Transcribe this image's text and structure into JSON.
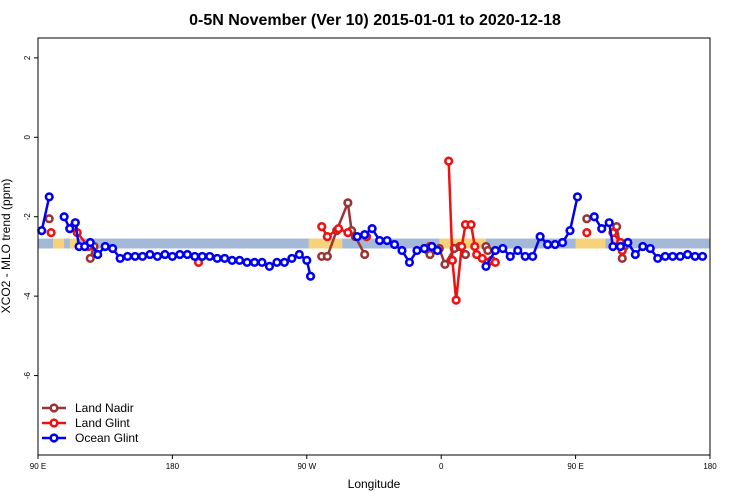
{
  "chart_data": {
    "type": "line",
    "title": "0-5N November (Ver 10)   2015-01-01 to 2020-12-18",
    "xlabel": "Longitude",
    "ylabel": "XCO2 - MLO trend (ppm)",
    "xlim": [
      90,
      450
    ],
    "ylim": [
      -8,
      2.5
    ],
    "x_ticks": [
      {
        "value": 90,
        "label": "90 E"
      },
      {
        "value": 162,
        "label": "180"
      },
      {
        "value": 234,
        "label": "90 W"
      },
      {
        "value": 306,
        "label": "0"
      },
      {
        "value": 378,
        "label": "90 E"
      },
      {
        "value": 450,
        "label": "180"
      }
    ],
    "y_ticks": [
      {
        "value": 2,
        "label": "2"
      },
      {
        "value": 0,
        "label": "0"
      },
      {
        "value": -2,
        "label": "-2"
      },
      {
        "value": -4,
        "label": "-4"
      },
      {
        "value": -6,
        "label": "-6"
      }
    ],
    "band": {
      "y_low": -2.8,
      "y_high": -2.55,
      "color": "#a4b8d8",
      "highlight_color": "#f7d27a",
      "highlight_ranges": [
        [
          98,
          104
        ],
        [
          107,
          112
        ],
        [
          235,
          253
        ],
        [
          305,
          330
        ],
        [
          378,
          394
        ],
        [
          398,
          404
        ]
      ]
    },
    "legend": {
      "position": "bottom-left"
    },
    "grid": false,
    "series": [
      {
        "name": "Land Nadir",
        "color": "#9b3434",
        "points": [
          [
            96,
            -2.05
          ],
          [
            109,
            -2.25
          ],
          [
            118,
            -3.05
          ],
          [
            120,
            -2.75
          ],
          [
            242,
            -3.0
          ],
          [
            245,
            -3.0
          ],
          [
            250,
            -2.35
          ],
          [
            256,
            -1.65
          ],
          [
            258,
            -2.35
          ],
          [
            260,
            -2.5
          ],
          [
            265,
            -2.95
          ],
          [
            299,
            -2.85
          ],
          [
            300,
            -2.95
          ],
          [
            305,
            -2.8
          ],
          [
            308,
            -3.2
          ],
          [
            313,
            -2.8
          ],
          [
            316,
            -2.75
          ],
          [
            319,
            -2.95
          ],
          [
            330,
            -2.75
          ],
          [
            331,
            -2.85
          ],
          [
            384,
            -2.05
          ],
          [
            400,
            -2.25
          ],
          [
            403,
            -3.05
          ],
          [
            404,
            -2.75
          ]
        ]
      },
      {
        "name": "Land Glint",
        "color": "#ee1111",
        "points": [
          [
            97,
            -2.4
          ],
          [
            111,
            -2.4
          ],
          [
            117,
            -2.75
          ],
          [
            176,
            -3.15
          ],
          [
            242,
            -2.25
          ],
          [
            245,
            -2.5
          ],
          [
            251,
            -2.3
          ],
          [
            256,
            -2.4
          ],
          [
            266,
            -2.5
          ],
          [
            300,
            -2.75
          ],
          [
            310,
            -0.6
          ],
          [
            312,
            -3.1
          ],
          [
            314,
            -4.1
          ],
          [
            317,
            -2.75
          ],
          [
            319,
            -2.2
          ],
          [
            322,
            -2.2
          ],
          [
            324,
            -2.75
          ],
          [
            325,
            -2.95
          ],
          [
            328,
            -3.05
          ],
          [
            331,
            -3.15
          ],
          [
            333,
            -3.1
          ],
          [
            335,
            -3.15
          ],
          [
            384,
            -2.4
          ],
          [
            398,
            -2.4
          ],
          [
            402,
            -2.65
          ],
          [
            403,
            -2.85
          ]
        ]
      },
      {
        "name": "Ocean Glint",
        "color": "#0000ee",
        "points": [
          [
            92,
            -2.35
          ],
          [
            96,
            -1.5
          ],
          [
            104,
            -2.0
          ],
          [
            107,
            -2.3
          ],
          [
            110,
            -2.15
          ],
          [
            112,
            -2.75
          ],
          [
            115,
            -2.75
          ],
          [
            118,
            -2.65
          ],
          [
            122,
            -2.95
          ],
          [
            126,
            -2.75
          ],
          [
            130,
            -2.8
          ],
          [
            134,
            -3.05
          ],
          [
            138,
            -3.0
          ],
          [
            142,
            -3.0
          ],
          [
            146,
            -3.0
          ],
          [
            150,
            -2.95
          ],
          [
            154,
            -3.0
          ],
          [
            158,
            -2.95
          ],
          [
            162,
            -3.0
          ],
          [
            166,
            -2.95
          ],
          [
            170,
            -2.95
          ],
          [
            174,
            -3.0
          ],
          [
            178,
            -3.0
          ],
          [
            182,
            -3.0
          ],
          [
            186,
            -3.05
          ],
          [
            190,
            -3.05
          ],
          [
            194,
            -3.1
          ],
          [
            198,
            -3.1
          ],
          [
            202,
            -3.15
          ],
          [
            206,
            -3.15
          ],
          [
            210,
            -3.15
          ],
          [
            214,
            -3.25
          ],
          [
            218,
            -3.15
          ],
          [
            222,
            -3.15
          ],
          [
            226,
            -3.05
          ],
          [
            230,
            -2.95
          ],
          [
            234,
            -3.1
          ],
          [
            236,
            -3.5
          ],
          [
            261,
            -2.5
          ],
          [
            265,
            -2.45
          ],
          [
            269,
            -2.3
          ],
          [
            273,
            -2.6
          ],
          [
            277,
            -2.6
          ],
          [
            281,
            -2.7
          ],
          [
            285,
            -2.85
          ],
          [
            289,
            -3.15
          ],
          [
            293,
            -2.85
          ],
          [
            297,
            -2.8
          ],
          [
            301,
            -2.75
          ],
          [
            304,
            -2.85
          ],
          [
            330,
            -3.25
          ],
          [
            335,
            -2.85
          ],
          [
            339,
            -2.8
          ],
          [
            343,
            -3.0
          ],
          [
            347,
            -2.85
          ],
          [
            351,
            -3.0
          ],
          [
            355,
            -3.0
          ],
          [
            359,
            -2.5
          ],
          [
            363,
            -2.7
          ],
          [
            367,
            -2.7
          ],
          [
            371,
            -2.65
          ],
          [
            375,
            -2.35
          ],
          [
            379,
            -1.5
          ],
          [
            388,
            -2.0
          ],
          [
            392,
            -2.3
          ],
          [
            396,
            -2.15
          ],
          [
            398,
            -2.75
          ],
          [
            402,
            -2.75
          ],
          [
            406,
            -2.65
          ],
          [
            410,
            -2.95
          ],
          [
            414,
            -2.75
          ],
          [
            418,
            -2.8
          ],
          [
            422,
            -3.05
          ],
          [
            426,
            -3.0
          ],
          [
            430,
            -3.0
          ],
          [
            434,
            -3.0
          ],
          [
            438,
            -2.95
          ],
          [
            442,
            -3.0
          ],
          [
            446,
            -3.0
          ]
        ]
      }
    ]
  }
}
